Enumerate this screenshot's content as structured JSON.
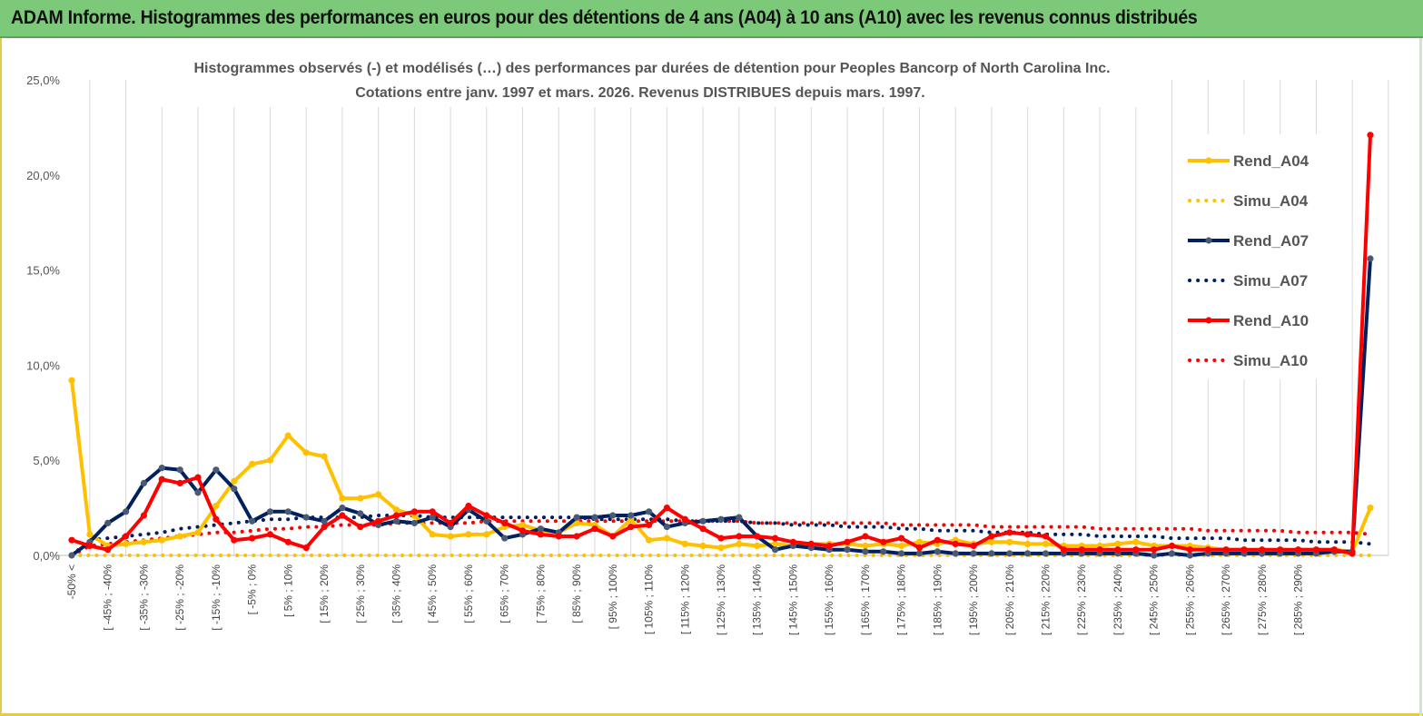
{
  "banner": {
    "title": "ADAM Informe. Histogrammes des performances en euros pour des détentions de 4 ans (A04) à 10 ans (A10) avec les revenus connus distribués"
  },
  "colors": {
    "banner_bg": "#7dc97a",
    "a04": "#ffc000",
    "a07": "#002060",
    "a10": "#ff0000",
    "a07_marker": "#4a5a75"
  },
  "chart_data": {
    "type": "line",
    "title": "Histogrammes observés (-)  et modélisés (…) des performances par durées de détention pour Peoples Bancorp of North Carolina Inc.",
    "subtitle": "Cotations entre janv. 1997 et mars. 2026.  Revenus DISTRIBUES depuis mars. 1997.",
    "xlabel": "",
    "ylabel": "",
    "ylim": [
      0,
      25
    ],
    "yticks": [
      "0,0%",
      "5,0%",
      "10,0%",
      "15,0%",
      "20,0%",
      "25,0%"
    ],
    "grid": "vertical",
    "legend_position": "right",
    "x_labels": [
      "-50% <",
      "[ -45% ; -40%",
      "[ -35% ; -30%",
      "[ -25% ; -20%",
      "[ -15% ; -10%",
      "[ -5% ; 0%",
      "[ 5% ; 10%",
      "[ 15% ; 20%",
      "[ 25% ; 30%",
      "[ 35% ; 40%",
      "[ 45% ; 50%",
      "[ 55% ; 60%",
      "[ 65% ; 70%",
      "[ 75% ; 80%",
      "[ 85% ; 90%",
      "[ 95% ; 100%",
      "[ 105% ; 110%",
      "[ 115% ; 120%",
      "[ 125% ; 130%",
      "[ 135% ; 140%",
      "[ 145% ; 150%",
      "[ 155% ; 160%",
      "[ 165% ; 170%",
      "[ 175% ; 180%",
      "[ 185% ; 190%",
      "[ 195% ; 200%",
      "[ 205% ; 210%",
      "[ 215% ; 220%",
      "[ 225% ; 230%",
      "[ 235% ; 240%",
      "[ 245% ; 250%",
      "[ 255% ; 260%",
      "[ 265% ; 270%",
      "[ 275% ; 280%",
      "[ 285% ; 290%"
    ],
    "series": [
      {
        "name": "Rend_A04",
        "style": "solid",
        "color": "#ffc000",
        "values": [
          9.2,
          1.1,
          0.5,
          0.6,
          0.7,
          0.8,
          1.0,
          1.2,
          2.6,
          3.9,
          4.8,
          5.0,
          6.3,
          5.4,
          5.2,
          3.0,
          3.0,
          3.2,
          2.4,
          2.1,
          1.1,
          1.0,
          1.1,
          1.1,
          1.5,
          1.6,
          1.3,
          1.2,
          1.7,
          1.6,
          1.0,
          1.9,
          0.8,
          0.9,
          0.6,
          0.5,
          0.4,
          0.6,
          0.5,
          0.6,
          0.5,
          0.6,
          0.6,
          0.6,
          0.5,
          0.6,
          0.5,
          0.7,
          0.6,
          0.8,
          0.6,
          0.7,
          0.7,
          0.6,
          0.6,
          0.5,
          0.5,
          0.5,
          0.6,
          0.7,
          0.5,
          0.5,
          0.5,
          0.4,
          0.3,
          0.3,
          0.2,
          0.2,
          0.3,
          0.3,
          0.3,
          0.2,
          2.5
        ]
      },
      {
        "name": "Simu_A04",
        "style": "dotted",
        "color": "#ffc000",
        "values": [
          0.0,
          0.0,
          0.0,
          0.0,
          0.0,
          0.0,
          0.0,
          0.0,
          0.0,
          0.0,
          0.0,
          0.0,
          0.0,
          0.0,
          0.0,
          0.0,
          0.0,
          0.0,
          0.0,
          0.0,
          0.0,
          0.0,
          0.0,
          0.0,
          0.0,
          0.0,
          0.0,
          0.0,
          0.0,
          0.0,
          0.0,
          0.0,
          0.0,
          0.0,
          0.0,
          0.0,
          0.0,
          0.0,
          0.0,
          0.0,
          0.0,
          0.0,
          0.0,
          0.0,
          0.0,
          0.0,
          0.0,
          0.0,
          0.0,
          0.0,
          0.0,
          0.0,
          0.0,
          0.0,
          0.0,
          0.0,
          0.0,
          0.0,
          0.0,
          0.0,
          0.0,
          0.0,
          0.0,
          0.0,
          0.0,
          0.0,
          0.0,
          0.0,
          0.0,
          0.0,
          0.0,
          0.0,
          0.0
        ]
      },
      {
        "name": "Rend_A07",
        "style": "solid",
        "color": "#002060",
        "values": [
          0.0,
          0.7,
          1.7,
          2.3,
          3.8,
          4.6,
          4.5,
          3.3,
          4.5,
          3.5,
          1.8,
          2.3,
          2.3,
          2.0,
          1.8,
          2.5,
          2.2,
          1.6,
          1.8,
          1.7,
          2.0,
          1.5,
          2.4,
          1.8,
          0.9,
          1.1,
          1.4,
          1.2,
          2.0,
          2.0,
          2.1,
          2.1,
          2.3,
          1.5,
          1.7,
          1.8,
          1.9,
          2.0,
          1.0,
          0.3,
          0.5,
          0.4,
          0.3,
          0.3,
          0.2,
          0.2,
          0.1,
          0.1,
          0.2,
          0.1,
          0.1,
          0.1,
          0.1,
          0.1,
          0.1,
          0.1,
          0.1,
          0.1,
          0.1,
          0.1,
          0.0,
          0.1,
          0.0,
          0.1,
          0.1,
          0.1,
          0.1,
          0.1,
          0.1,
          0.1,
          0.2,
          0.2,
          15.6
        ]
      },
      {
        "name": "Simu_A07",
        "style": "dotted",
        "color": "#002060",
        "values": [
          0.0,
          0.8,
          0.9,
          1.0,
          1.1,
          1.2,
          1.4,
          1.5,
          1.6,
          1.7,
          1.8,
          1.9,
          1.9,
          2.0,
          2.0,
          2.0,
          2.0,
          2.1,
          2.1,
          2.1,
          2.0,
          2.0,
          2.0,
          2.0,
          2.0,
          2.0,
          2.0,
          2.0,
          2.0,
          1.9,
          1.9,
          1.9,
          1.9,
          1.9,
          1.8,
          1.8,
          1.8,
          1.8,
          1.7,
          1.7,
          1.6,
          1.6,
          1.6,
          1.5,
          1.5,
          1.5,
          1.4,
          1.4,
          1.3,
          1.3,
          1.3,
          1.2,
          1.2,
          1.2,
          1.1,
          1.1,
          1.1,
          1.0,
          1.0,
          1.0,
          1.0,
          0.9,
          0.9,
          0.9,
          0.9,
          0.8,
          0.8,
          0.8,
          0.8,
          0.7,
          0.7,
          0.7,
          0.6
        ]
      },
      {
        "name": "Rend_A10",
        "style": "solid",
        "color": "#ff0000",
        "values": [
          0.8,
          0.5,
          0.3,
          1.0,
          2.1,
          4.0,
          3.8,
          4.1,
          1.9,
          0.8,
          0.9,
          1.1,
          0.7,
          0.4,
          1.5,
          2.1,
          1.5,
          1.8,
          2.1,
          2.3,
          2.3,
          1.7,
          2.6,
          2.1,
          1.7,
          1.3,
          1.1,
          1.0,
          1.0,
          1.4,
          1.0,
          1.5,
          1.6,
          2.5,
          1.9,
          1.4,
          0.9,
          1.0,
          1.0,
          0.9,
          0.7,
          0.6,
          0.5,
          0.7,
          1.0,
          0.7,
          0.9,
          0.4,
          0.8,
          0.6,
          0.5,
          1.0,
          1.2,
          1.1,
          1.0,
          0.3,
          0.3,
          0.3,
          0.3,
          0.3,
          0.3,
          0.5,
          0.3,
          0.3,
          0.3,
          0.3,
          0.3,
          0.3,
          0.3,
          0.3,
          0.3,
          0.1,
          22.1
        ]
      },
      {
        "name": "Simu_A10",
        "style": "dotted",
        "color": "#ff0000",
        "values": [
          0.0,
          0.5,
          0.6,
          0.7,
          0.8,
          0.9,
          1.0,
          1.1,
          1.2,
          1.2,
          1.3,
          1.4,
          1.4,
          1.5,
          1.5,
          1.6,
          1.6,
          1.6,
          1.7,
          1.7,
          1.7,
          1.7,
          1.7,
          1.8,
          1.8,
          1.8,
          1.8,
          1.8,
          1.8,
          1.8,
          1.8,
          1.8,
          1.8,
          1.8,
          1.8,
          1.8,
          1.8,
          1.8,
          1.7,
          1.7,
          1.7,
          1.7,
          1.7,
          1.7,
          1.7,
          1.7,
          1.6,
          1.6,
          1.6,
          1.6,
          1.6,
          1.5,
          1.5,
          1.5,
          1.5,
          1.5,
          1.5,
          1.4,
          1.4,
          1.4,
          1.4,
          1.4,
          1.4,
          1.3,
          1.3,
          1.3,
          1.3,
          1.3,
          1.2,
          1.2,
          1.2,
          1.2,
          1.1
        ]
      }
    ]
  }
}
